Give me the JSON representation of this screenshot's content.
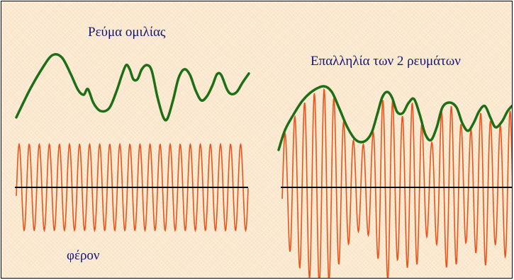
{
  "labels": {
    "speech_current": "Ρεύμα ομιλίας",
    "superposition": "Επαλληλία των 2 ρευμάτων",
    "carrier": "φέρον"
  },
  "colors": {
    "background": "#fbe9cf",
    "envelope": "#1e6e16",
    "carrier_wave": "#e8541c",
    "axis": "#000000",
    "text": "#141478"
  },
  "icons": []
}
